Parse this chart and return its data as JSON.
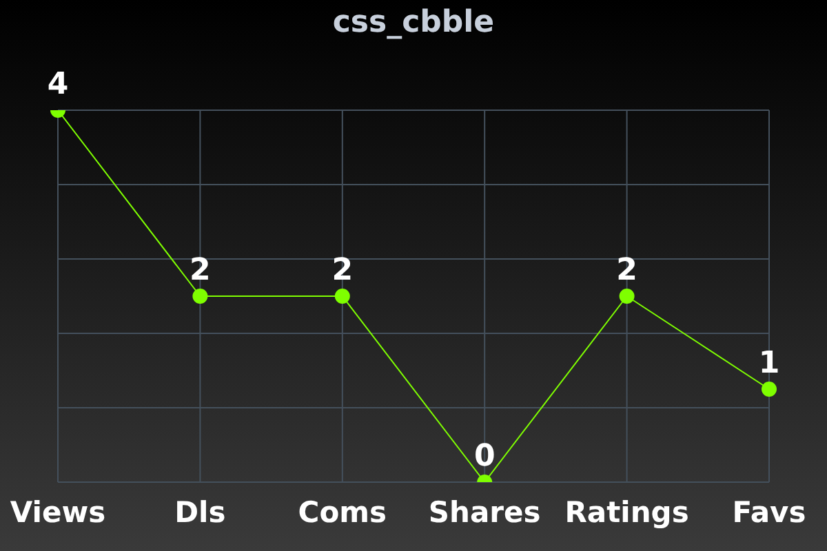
{
  "chart_data": {
    "type": "line",
    "title": "css_cbble",
    "categories": [
      "Views",
      "Dls",
      "Coms",
      "Shares",
      "Ratings",
      "Favs"
    ],
    "series": [
      {
        "color": "#7fff00",
        "values": [
          4,
          2,
          2,
          0,
          2,
          1
        ]
      }
    ],
    "ylim": [
      0,
      4
    ],
    "yticks": [
      {
        "value": 0,
        "label": null
      },
      {
        "value": 0.8,
        "label": null
      },
      {
        "value": 1.6,
        "label": null
      },
      {
        "value": 2.4,
        "label": null
      },
      {
        "value": 3.2,
        "label": null
      },
      {
        "value": 4,
        "label": null
      }
    ],
    "tick_labels": "x",
    "grid": true,
    "data_labels": true,
    "marker": "circle",
    "line_style": "solid",
    "legend": false
  }
}
